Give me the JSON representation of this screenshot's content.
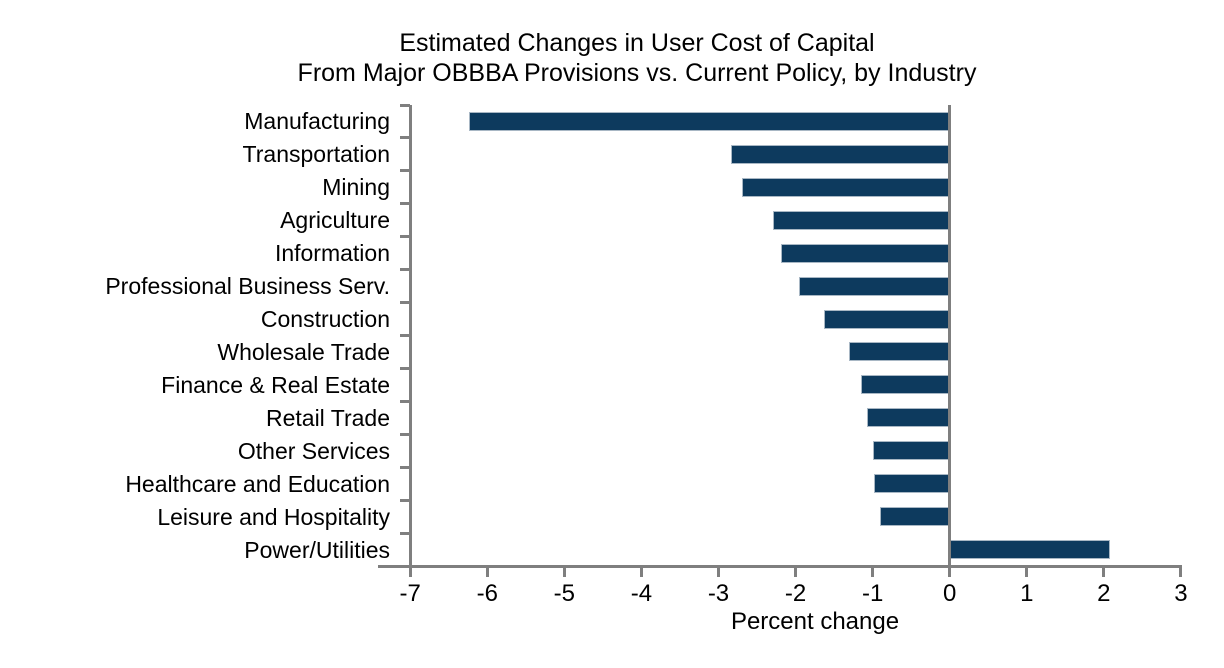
{
  "figure": {
    "title_line1": "Estimated Changes in User Cost of Capital",
    "title_line2": "From Major OBBBA Provisions vs. Current Policy, by Industry"
  },
  "chart_data": {
    "type": "bar",
    "orientation": "horizontal",
    "title": "Estimated Changes in User Cost of Capital\nFrom Major OBBBA Provisions vs. Current Policy, by Industry",
    "xlabel": "Percent change",
    "ylabel": "",
    "categories": [
      "Manufacturing",
      "Transportation",
      "Mining",
      "Agriculture",
      "Information",
      "Professional Business Serv.",
      "Construction",
      "Wholesale Trade",
      "Finance & Real Estate",
      "Retail Trade",
      "Other Services",
      "Healthcare and Education",
      "Leisure and Hospitality",
      "Power/Utilities"
    ],
    "values": [
      -6.24,
      -2.84,
      -2.69,
      -2.29,
      -2.19,
      -1.96,
      -1.63,
      -1.31,
      -1.15,
      -1.07,
      -1.0,
      -0.98,
      -0.91,
      2.08
    ],
    "xlim": [
      -7,
      3
    ],
    "xticks": [
      -7,
      -6,
      -5,
      -4,
      -3,
      -2,
      -1,
      0,
      1,
      2,
      3
    ],
    "grid": false,
    "zero_line": true,
    "legend": null,
    "colors": {
      "bar_fill": "#0d3a5e",
      "bar_edge": "#a8b7c4",
      "axis": "#7f7f7f",
      "text": "#000000",
      "background": "#ffffff"
    }
  }
}
